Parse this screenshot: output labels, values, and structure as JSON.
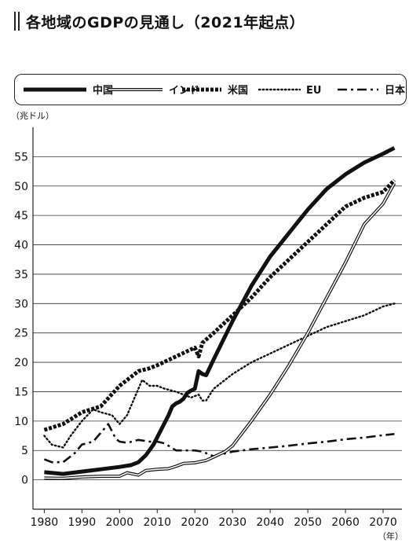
{
  "chart_data": {
    "type": "line",
    "title": "各地域のGDPの見通し（2021年起点）",
    "ylabel": "（兆ドル）",
    "xlabel": "（年）",
    "xlim": [
      1977,
      2075
    ],
    "ylim": [
      -5,
      60
    ],
    "xticks": [
      1980,
      1990,
      2000,
      2010,
      2020,
      2030,
      2040,
      2050,
      2060,
      2070
    ],
    "yticks": [
      0,
      5,
      10,
      15,
      20,
      25,
      30,
      35,
      40,
      45,
      50,
      55
    ],
    "grid": "horizontal",
    "legend": "top",
    "series": [
      {
        "name": "中国",
        "style": "thick-solid",
        "x": [
          1980,
          1985,
          1990,
          1995,
          2000,
          2003,
          2005,
          2007,
          2009,
          2011,
          2013,
          2014,
          2015,
          2016,
          2017,
          2018,
          2019,
          2020,
          2021,
          2022,
          2023,
          2025,
          2030,
          2035,
          2040,
          2045,
          2050,
          2055,
          2060,
          2065,
          2070,
          2073
        ],
        "y": [
          1.3,
          1.0,
          1.4,
          1.8,
          2.2,
          2.5,
          3.0,
          4.2,
          6.0,
          8.5,
          11.0,
          12.5,
          13.0,
          13.3,
          13.8,
          14.8,
          15.2,
          15.5,
          18.5,
          18.0,
          17.8,
          20.5,
          27.0,
          33.0,
          38.0,
          42.0,
          46.0,
          49.5,
          52.0,
          54.0,
          55.5,
          56.5
        ]
      },
      {
        "name": "インド",
        "style": "double-line",
        "x": [
          1980,
          1985,
          1990,
          1995,
          2000,
          2002,
          2005,
          2007,
          2010,
          2013,
          2015,
          2017,
          2020,
          2023,
          2025,
          2028,
          2030,
          2035,
          2040,
          2045,
          2050,
          2055,
          2060,
          2065,
          2070,
          2073
        ],
        "y": [
          0.3,
          0.25,
          0.5,
          0.6,
          0.6,
          1.2,
          0.8,
          1.6,
          1.8,
          1.9,
          2.3,
          2.8,
          2.9,
          3.3,
          3.9,
          4.8,
          5.8,
          10.0,
          14.5,
          19.5,
          25.0,
          31.0,
          37.0,
          43.5,
          47.0,
          50.5
        ]
      },
      {
        "name": "米国",
        "style": "thick-dashed",
        "x": [
          1980,
          1985,
          1990,
          1995,
          2000,
          2005,
          2008,
          2010,
          2015,
          2020,
          2021,
          2022,
          2025,
          2030,
          2035,
          2040,
          2045,
          2050,
          2055,
          2060,
          2065,
          2070,
          2073
        ],
        "y": [
          8.5,
          9.5,
          11.5,
          12.5,
          16.0,
          18.5,
          19.0,
          19.5,
          21.0,
          22.5,
          21.0,
          23.3,
          25.0,
          28.0,
          31.0,
          34.5,
          37.5,
          40.5,
          43.5,
          46.5,
          48.0,
          49.0,
          51.0
        ]
      },
      {
        "name": "EU",
        "style": "dotted",
        "x": [
          1980,
          1982,
          1985,
          1987,
          1990,
          1993,
          1995,
          1998,
          2000,
          2002,
          2004,
          2006,
          2008,
          2010,
          2012,
          2015,
          2017,
          2019,
          2021,
          2022,
          2023,
          2025,
          2030,
          2035,
          2040,
          2045,
          2050,
          2055,
          2060,
          2065,
          2070,
          2073
        ],
        "y": [
          7.5,
          6.0,
          5.5,
          7.5,
          10.0,
          12.0,
          11.5,
          11.0,
          9.5,
          11.0,
          14.0,
          17.0,
          16.0,
          16.0,
          15.5,
          15.0,
          14.5,
          14.0,
          14.5,
          13.5,
          13.5,
          15.5,
          18.0,
          20.0,
          21.5,
          23.0,
          24.5,
          26.0,
          27.0,
          28.0,
          29.5,
          30.0
        ]
      },
      {
        "name": "日本",
        "style": "dash-dot",
        "x": [
          1980,
          1982,
          1985,
          1988,
          1990,
          1993,
          1995,
          1997,
          1999,
          2000,
          2002,
          2005,
          2008,
          2010,
          2012,
          2015,
          2018,
          2020,
          2022,
          2025,
          2030,
          2035,
          2040,
          2045,
          2050,
          2055,
          2060,
          2065,
          2070,
          2073
        ],
        "y": [
          3.5,
          3.0,
          3.0,
          4.5,
          6.0,
          6.5,
          8.0,
          9.5,
          7.0,
          6.5,
          6.3,
          6.8,
          6.5,
          6.5,
          6.2,
          5.0,
          5.0,
          5.0,
          4.8,
          4.0,
          4.8,
          5.2,
          5.5,
          5.8,
          6.2,
          6.5,
          6.9,
          7.2,
          7.6,
          7.8
        ]
      }
    ]
  }
}
